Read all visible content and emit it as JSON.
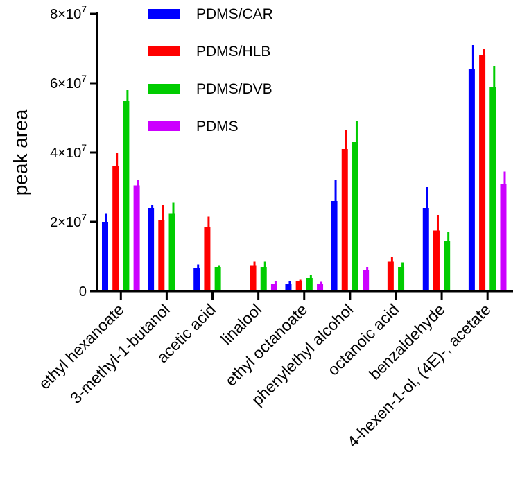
{
  "chart_data": {
    "type": "bar",
    "title": "",
    "xlabel": "",
    "ylabel": "peak area",
    "ylim": [
      0,
      80000000
    ],
    "yticks": [
      {
        "value": 0,
        "base": "0",
        "exp": ""
      },
      {
        "value": 20000000,
        "base": "2×10",
        "exp": "7"
      },
      {
        "value": 40000000,
        "base": "4×10",
        "exp": "7"
      },
      {
        "value": 60000000,
        "base": "6×10",
        "exp": "7"
      },
      {
        "value": 80000000,
        "base": "8×10",
        "exp": "7"
      }
    ],
    "categories": [
      "ethyl hexanoate",
      "3-methyl-1-butanol",
      "acetic acid",
      "linalool",
      "ethyl octanoate",
      "phenylethyl alcohol",
      "octanoic acid",
      "benzaldehyde",
      "4-hexen-1-ol, (4E)-, acetate"
    ],
    "series": [
      {
        "name": "PDMS/CAR",
        "color": "#0000ff",
        "values": [
          20000000,
          24000000,
          6700000,
          null,
          2200000,
          26000000,
          null,
          24000000,
          64000000
        ],
        "errors": [
          2500000,
          1000000,
          1000000,
          null,
          800000,
          6000000,
          null,
          6000000,
          7000000
        ]
      },
      {
        "name": "PDMS/HLB",
        "color": "#ff0000",
        "values": [
          36000000,
          20500000,
          18500000,
          7500000,
          2800000,
          41000000,
          8500000,
          17500000,
          68000000
        ],
        "errors": [
          4000000,
          4500000,
          3000000,
          1000000,
          500000,
          5500000,
          1500000,
          4500000,
          1800000
        ]
      },
      {
        "name": "PDMS/DVB",
        "color": "#00cc00",
        "values": [
          55000000,
          22500000,
          7000000,
          7000000,
          3800000,
          43000000,
          7000000,
          14500000,
          59000000
        ],
        "errors": [
          3000000,
          3000000,
          500000,
          1500000,
          800000,
          6000000,
          1300000,
          2500000,
          6000000
        ]
      },
      {
        "name": "PDMS",
        "color": "#cc00ff",
        "values": [
          30500000,
          null,
          null,
          2000000,
          2000000,
          6000000,
          null,
          null,
          31000000
        ],
        "errors": [
          1500000,
          null,
          null,
          800000,
          700000,
          1000000,
          null,
          null,
          3500000
        ]
      }
    ],
    "legend": "top-center",
    "grid": false
  }
}
